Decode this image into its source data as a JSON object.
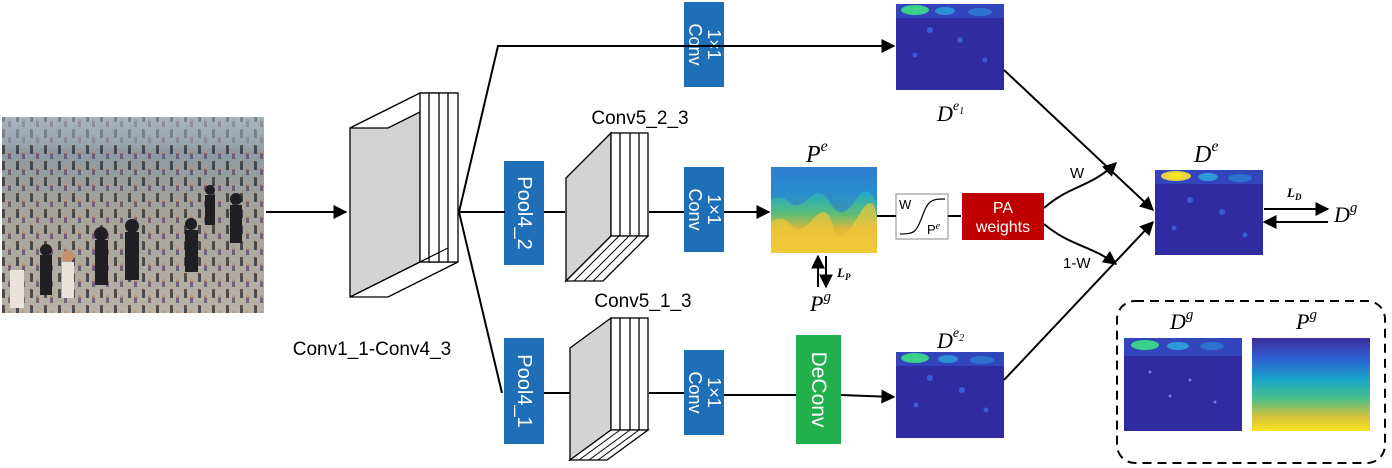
{
  "labels": {
    "backbone": "Conv1_1-Conv4_3",
    "conv5_2": "Conv5_2_3",
    "conv5_1": "Conv5_1_3",
    "pool4_2": "Pool4_2",
    "pool4_1": "Pool4_1",
    "conv1x1_line1": "1×1",
    "conv1x1_line2": "Conv",
    "deconv": "DeConv",
    "pa_line1": "PA",
    "pa_line2": "weights",
    "sig_w": "W",
    "sig_p": "P",
    "sig_p_sup": "e",
    "weight_w": "W",
    "weight_1mw": "1-W"
  },
  "math": {
    "pe": {
      "base": "P",
      "sup": "e"
    },
    "pg": {
      "base": "P",
      "sup": "g"
    },
    "de": {
      "base": "D",
      "sup": "e"
    },
    "dg": {
      "base": "D",
      "sup": "g"
    },
    "de1": {
      "base": "D",
      "sup": "e",
      "sub": "1"
    },
    "de2": {
      "base": "D",
      "sup": "e",
      "sub": "2"
    },
    "lp": {
      "base": "L",
      "sub": "P"
    },
    "ld": {
      "base": "L",
      "sub": "D"
    }
  },
  "legend": {
    "dg": {
      "base": "D",
      "sup": "g"
    },
    "pg": {
      "base": "P",
      "sup": "g"
    }
  },
  "colors": {
    "conv_block": "#1e6fb8",
    "deconv_block": "#21b04b",
    "pa_block": "#c00000",
    "density_bg": "#2e2ca0",
    "feature_face": "#d3d3d3"
  }
}
